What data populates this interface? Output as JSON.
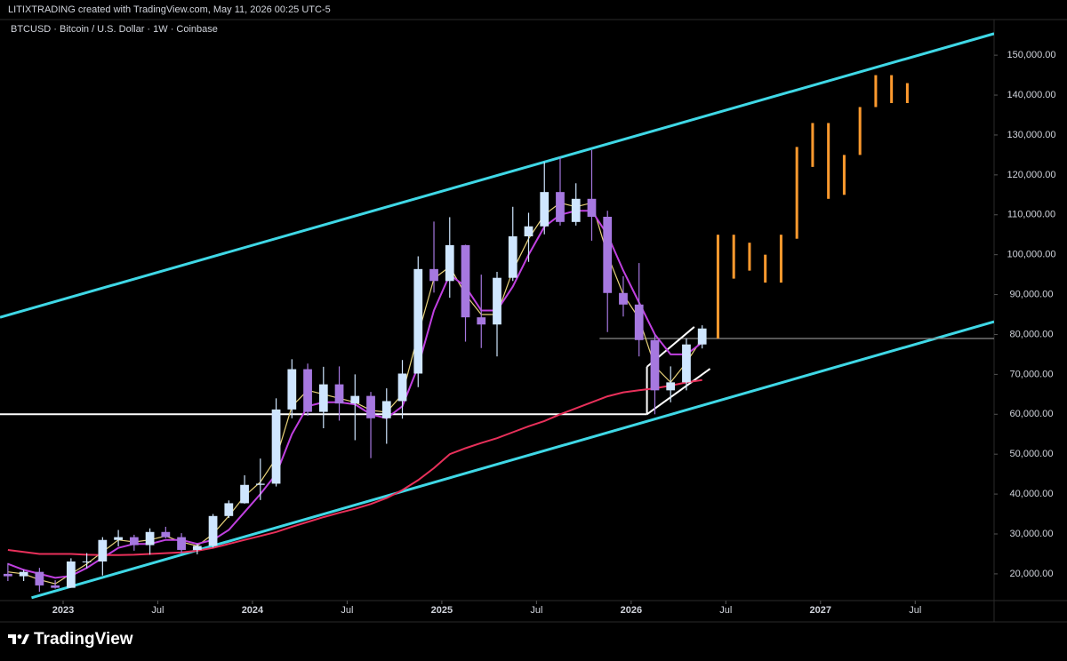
{
  "header": {
    "caption": "LITIXTRADING created with TradingView.com, May 11, 2026 00:25 UTC-5"
  },
  "chart_data": {
    "type": "candlestick",
    "title": "BTCUSD · Bitcoin / U.S. Dollar · 1W · Coinbase",
    "up_color": "#cfe6ff",
    "down_color": "#a678e0",
    "grid": false,
    "xlim": [
      "2022-09",
      "2027-12"
    ],
    "ylim": [
      13300,
      157600
    ],
    "xticks": [
      {
        "value": "2023-01",
        "label": "2023"
      },
      {
        "value": "2023-07",
        "label": "Jul"
      },
      {
        "value": "2024-01",
        "label": "2024"
      },
      {
        "value": "2024-07",
        "label": "Jul"
      },
      {
        "value": "2025-01",
        "label": "2025"
      },
      {
        "value": "2025-07",
        "label": "Jul"
      },
      {
        "value": "2026-01",
        "label": "2026"
      },
      {
        "value": "2026-07",
        "label": "Jul"
      },
      {
        "value": "2027-01",
        "label": "2027"
      },
      {
        "value": "2027-07",
        "label": "Jul"
      }
    ],
    "yticks": [
      {
        "value": 20000,
        "label": "20,000.00"
      },
      {
        "value": 30000,
        "label": "30,000.00"
      },
      {
        "value": 40000,
        "label": "40,000.00"
      },
      {
        "value": 50000,
        "label": "50,000.00"
      },
      {
        "value": 60000,
        "label": "60,000.00"
      },
      {
        "value": 70000,
        "label": "70,000.00"
      },
      {
        "value": 80000,
        "label": "80,000.00"
      },
      {
        "value": 90000,
        "label": "90,000.00"
      },
      {
        "value": 100000,
        "label": "100,000.00"
      },
      {
        "value": 110000,
        "label": "110,000.00"
      },
      {
        "value": 120000,
        "label": "120,000.00"
      },
      {
        "value": 130000,
        "label": "130,000.00"
      },
      {
        "value": 140000,
        "label": "140,000.00"
      },
      {
        "value": 150000,
        "label": "150,000.00"
      }
    ],
    "x": [
      "2022-09",
      "2022-10",
      "2022-11",
      "2022-12",
      "2023-01",
      "2023-02",
      "2023-03",
      "2023-04",
      "2023-05",
      "2023-06",
      "2023-07",
      "2023-08",
      "2023-09",
      "2023-10",
      "2023-11",
      "2023-12",
      "2024-01",
      "2024-02",
      "2024-03",
      "2024-04",
      "2024-05",
      "2024-06",
      "2024-07",
      "2024-08",
      "2024-09",
      "2024-10",
      "2024-11",
      "2024-12",
      "2025-01",
      "2025-02",
      "2025-03",
      "2025-04",
      "2025-05",
      "2025-06",
      "2025-07",
      "2025-08",
      "2025-09",
      "2025-10",
      "2025-11",
      "2025-12",
      "2026-01",
      "2026-02",
      "2026-03",
      "2026-04",
      "2026-05"
    ],
    "open": [
      20000,
      19400,
      20500,
      17100,
      16500,
      23100,
      23100,
      28500,
      29200,
      27200,
      30500,
      29200,
      26000,
      27000,
      34500,
      37700,
      42300,
      42600,
      61200,
      71300,
      60600,
      67500,
      62700,
      64600,
      59000,
      63300,
      70200,
      96400,
      93400,
      102400,
      84300,
      82500,
      94200,
      104600,
      107100,
      115700,
      108200,
      114000,
      109500,
      90400,
      87500,
      78600,
      66000,
      68000,
      77500
    ],
    "high": [
      22700,
      21000,
      21500,
      18400,
      23900,
      25200,
      29200,
      31000,
      29800,
      31400,
      31800,
      30200,
      27500,
      35000,
      38400,
      44700,
      48900,
      64000,
      73800,
      72700,
      71900,
      72000,
      70000,
      65600,
      66500,
      73600,
      99600,
      108300,
      109400,
      102500,
      95000,
      95700,
      112000,
      110500,
      123200,
      124400,
      117900,
      126200,
      111000,
      94600,
      97900,
      80000,
      72000,
      79000,
      82300
    ],
    "low": [
      18200,
      18200,
      15500,
      16300,
      16500,
      21400,
      19600,
      26900,
      25800,
      24800,
      28900,
      25200,
      24900,
      26600,
      34000,
      37600,
      38500,
      41900,
      59000,
      59600,
      56500,
      58400,
      53500,
      49000,
      52600,
      58900,
      66800,
      90500,
      89200,
      78200,
      76600,
      74500,
      93400,
      98200,
      105100,
      107300,
      107300,
      103500,
      80600,
      84500,
      74500,
      60000,
      63000,
      66000,
      76500
    ],
    "close": [
      19400,
      20500,
      17100,
      16500,
      23100,
      23100,
      28500,
      29200,
      27200,
      30500,
      29200,
      26000,
      27000,
      34500,
      37700,
      42300,
      42600,
      61200,
      71300,
      60600,
      67500,
      62700,
      64600,
      59000,
      63300,
      70200,
      96400,
      93400,
      102400,
      84300,
      82500,
      94200,
      104600,
      107100,
      115700,
      108200,
      114000,
      109500,
      90400,
      87500,
      78600,
      66000,
      68000,
      77500,
      81500
    ],
    "lines": [
      {
        "color": "#e8d27a",
        "values": [
          20500,
          20000,
          18500,
          17500,
          20000,
          22500,
          25500,
          28500,
          28000,
          28500,
          29500,
          28000,
          27000,
          30000,
          34500,
          39500,
          43000,
          49000,
          62000,
          66000,
          65000,
          64000,
          63000,
          61000,
          60500,
          65000,
          80000,
          94000,
          97000,
          90000,
          85000,
          85000,
          96000,
          104000,
          110000,
          113000,
          112000,
          113000,
          100000,
          90000,
          84000,
          72000,
          68000,
          73000,
          79000
        ]
      },
      {
        "color": "#c040e0",
        "values": [
          22500,
          21000,
          20000,
          19000,
          19500,
          21500,
          24000,
          26500,
          27500,
          27500,
          28500,
          28500,
          27500,
          28500,
          31000,
          35500,
          40000,
          45000,
          55000,
          62000,
          63000,
          63000,
          62500,
          60000,
          59000,
          62000,
          72000,
          86000,
          95000,
          92000,
          86000,
          86000,
          92000,
          100000,
          107000,
          110000,
          111000,
          111000,
          105000,
          96000,
          88000,
          80000,
          75000,
          75000,
          78000
        ]
      },
      {
        "color": "#e8305a",
        "values": [
          26000,
          25500,
          25000,
          25000,
          25000,
          24800,
          24700,
          24700,
          24800,
          25000,
          25200,
          25400,
          25800,
          26500,
          27500,
          28500,
          29500,
          30500,
          31800,
          33000,
          34200,
          35300,
          36300,
          37500,
          39000,
          41000,
          43500,
          46500,
          50000,
          51500,
          52800,
          54000,
          55500,
          57000,
          58300,
          60000,
          61500,
          63000,
          64500,
          65500,
          66000,
          66500,
          67200,
          68000,
          68600
        ]
      }
    ],
    "projection": {
      "color": "#ff9a2e",
      "x": [
        "2026-06",
        "2026-07",
        "2026-08",
        "2026-09",
        "2026-10",
        "2026-11",
        "2026-12",
        "2027-01",
        "2027-02",
        "2027-03",
        "2027-04",
        "2027-05",
        "2027-06"
      ],
      "low": [
        79000,
        94000,
        96000,
        93000,
        93000,
        104000,
        122000,
        114000,
        115000,
        125000,
        137000,
        138000,
        138000
      ],
      "high": [
        105000,
        105000,
        103000,
        100000,
        105000,
        127000,
        133000,
        133000,
        125000,
        137000,
        145000,
        145000,
        143000
      ]
    },
    "trendlines": [
      {
        "color": "#3fd8e6",
        "points": [
          [
            "2022-09",
            84300
          ],
          [
            "2027-12",
            155400
          ]
        ]
      },
      {
        "color": "#3fd8e6",
        "points": [
          [
            "2022-11",
            14000
          ],
          [
            "2027-12",
            83200
          ]
        ]
      },
      {
        "color": "#ffffff",
        "points": [
          [
            "2022-09",
            60000
          ],
          [
            "2026-02",
            60000
          ]
        ]
      },
      {
        "color": "#8a8a8a",
        "points": [
          [
            "2025-11",
            79000
          ],
          [
            "2027-12",
            79000
          ]
        ]
      },
      {
        "color": "#ffffff",
        "points": [
          [
            "2026-02",
            71900
          ],
          [
            "2026-05",
            81900
          ]
        ]
      },
      {
        "color": "#ffffff",
        "points": [
          [
            "2026-02",
            60000
          ],
          [
            "2026-06",
            71400
          ]
        ]
      },
      {
        "color": "#ffffff",
        "points": [
          [
            "2026-02",
            60000
          ],
          [
            "2026-02",
            71900
          ]
        ]
      }
    ]
  },
  "footer": {
    "brand": "TradingView"
  }
}
